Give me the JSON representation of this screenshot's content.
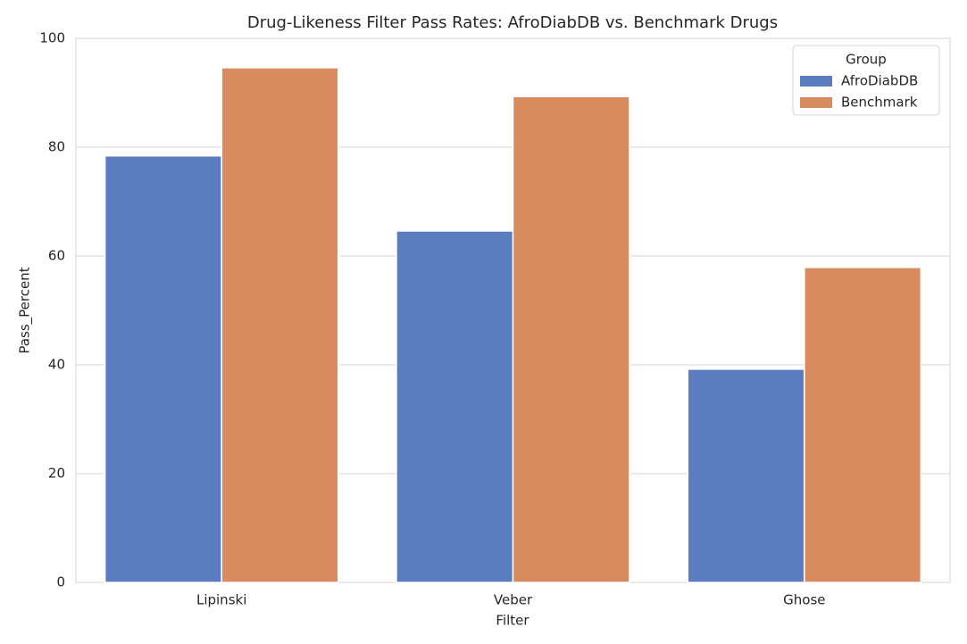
{
  "chart_data": {
    "type": "bar",
    "title": "Drug-Likeness Filter Pass Rates: AfroDiabDB vs. Benchmark Drugs",
    "x_label": "Filter",
    "y_label": "Pass_Percent",
    "categories": [
      "Lipinski",
      "Veber",
      "Ghose"
    ],
    "series": [
      {
        "name": "AfroDiabDB",
        "color": "#5b7dc0",
        "values": [
          78.4,
          64.6,
          39.2
        ]
      },
      {
        "name": "Benchmark",
        "color": "#d98b5f",
        "values": [
          94.6,
          89.3,
          57.9
        ]
      }
    ],
    "legend_title": "Group",
    "legend": "upper right",
    "ylim": [
      0,
      100
    ],
    "yticks": [
      0,
      20,
      40,
      60,
      80,
      100
    ],
    "grid": true
  }
}
